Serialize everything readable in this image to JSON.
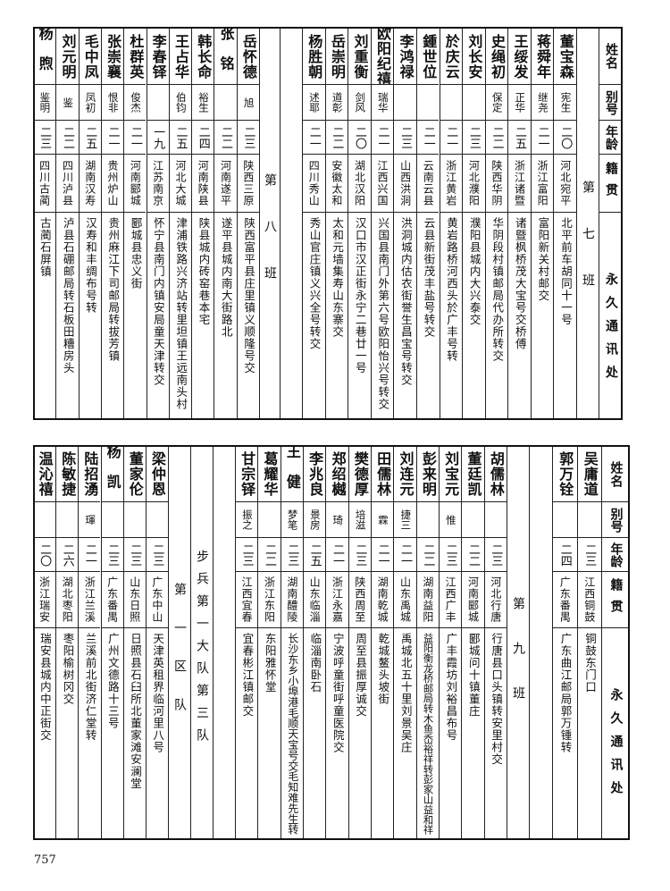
{
  "headers": {
    "name": "姓名",
    "alias": "别号",
    "age": "年龄",
    "native": "籍贯",
    "address": "永久通讯处"
  },
  "top": {
    "class7_label": "第七班",
    "class7": [
      {
        "name": "董宝森",
        "alias": "宪生",
        "age": "二〇",
        "native": "河北宛平",
        "address": "北平前车胡同十一号"
      },
      {
        "name": "蒋舜年",
        "alias": "继尧",
        "age": "二一",
        "native": "浙江富阳",
        "address": "富阳新关村邮交"
      },
      {
        "name": "王绥发",
        "alias": "正华",
        "age": "二五",
        "native": "浙江诸暨",
        "address": "诸暨枫桥茂大宝号交桥傅"
      },
      {
        "name": "史绳初",
        "alias": "保定",
        "age": "二二",
        "native": "陕西华阴",
        "address": "华阴段村镇邮局代办所转交"
      },
      {
        "name": "刘长安",
        "alias": "",
        "age": "二三",
        "native": "河北濮阳",
        "address": "濮阳县城内大兴泰交"
      },
      {
        "name": "於庆云",
        "alias": "",
        "age": "二一",
        "native": "浙江黄岩",
        "address": "黄岩路桥河西头於广丰号转"
      },
      {
        "name": "鍾世位",
        "alias": "",
        "age": "二一",
        "native": "云南云县",
        "address": "云县新街茂丰盐号转交"
      },
      {
        "name": "李鸿禄",
        "alias": "",
        "age": "二三",
        "native": "山西洪洞",
        "address": "洪洞城内估衣街誉生昌宝号转交"
      },
      {
        "name": "欧阳纪禧",
        "alias": "瑞华",
        "age": "二一",
        "native": "江西兴国",
        "address": "兴国县南门外第六号欧阳怡兴号转交"
      },
      {
        "name": "刘重衡",
        "alias": "剑风",
        "age": "二〇",
        "native": "湖北汉阳",
        "address": "汉口市汉正街永宁二巷廿一号"
      },
      {
        "name": "岳崇明",
        "alias": "道彰",
        "age": "二二",
        "native": "安徽太和",
        "address": "太和元墙集寿山东寨交"
      },
      {
        "name": "杨胜朝",
        "alias": "述耶",
        "age": "二一",
        "native": "四川秀山",
        "address": "秀山官庄镇义兴全号转交"
      }
    ],
    "class8_label": "第八班",
    "class8": [
      {
        "name": "岳怀德",
        "alias": "旭",
        "age": "二三",
        "native": "陕西三原",
        "address": "陕西富平县庄里镇义顺隆号交"
      },
      {
        "name": "张铭",
        "alias": "",
        "age": "二二",
        "native": "河南遂平",
        "address": "遂平县城内南大街路北"
      },
      {
        "name": "韩长命",
        "alias": "裕生",
        "age": "二四",
        "native": "河南陕县",
        "address": "陕县城内砖窑巷本宅"
      },
      {
        "name": "王占华",
        "alias": "伯钧",
        "age": "二五",
        "native": "河北大城",
        "address": "津浦铁路兴济站转里坦镇王远南头村"
      },
      {
        "name": "李春铎",
        "alias": "",
        "age": "一九",
        "native": "江苏南京",
        "address": "怀宁县南门内镇安局童天津转交"
      },
      {
        "name": "杜群英",
        "alias": "俊杰",
        "age": "二一",
        "native": "河南郾城",
        "address": "郾城县忠义街"
      },
      {
        "name": "张崇襄",
        "alias": "恨非",
        "age": "二一",
        "native": "贵州炉山",
        "address": "贵州麻江下司邮局转拔芳镇"
      },
      {
        "name": "毛中凤",
        "alias": "凤初",
        "age": "二五",
        "native": "湖南汉寿",
        "address": "汉寿和丰绸布号转"
      },
      {
        "name": "刘元明",
        "alias": "鉴",
        "age": "二二",
        "native": "四川泸县",
        "address": "泸县石硼邮局转石板田糟房头"
      },
      {
        "name": "杨煦",
        "alias": "鉴明",
        "age": "二三",
        "native": "四川古蔺",
        "address": "古蔺石屏镇"
      }
    ]
  },
  "bottom": {
    "class8_cont": [
      {
        "name": "吴庸道",
        "alias": "",
        "age": "二三",
        "native": "江西铜鼓",
        "address": "铜鼓东门口"
      },
      {
        "name": "郭万铨",
        "alias": "",
        "age": "二四",
        "native": "广东番禺",
        "address": "广东曲江邮局郭万锺转"
      }
    ],
    "class9_label": "第九班",
    "class9": [
      {
        "name": "胡儒林",
        "alias": "",
        "age": "二三",
        "native": "河北行唐",
        "address": "行唐县口头镇转安里村交"
      },
      {
        "name": "董廷凯",
        "alias": "",
        "age": "二二",
        "native": "河南郾城",
        "address": "郾城问十镇董庄"
      },
      {
        "name": "刘宝元",
        "alias": "惟",
        "age": "二三",
        "native": "江西广丰",
        "address": "广丰霞坊刘裕昌布号"
      },
      {
        "name": "彭来明",
        "alias": "",
        "age": "二二",
        "native": "湖南益阳",
        "address": "益阳衡龙桥邮局转木鱼岙裕祥转彭家山益和祥"
      },
      {
        "name": "刘连元",
        "alias": "捷三",
        "age": "二一",
        "native": "山东禹城",
        "address": "禹城北五十里刘景吴庄"
      },
      {
        "name": "田儒林",
        "alias": "霖",
        "age": "二一",
        "native": "湖南乾城",
        "address": "乾城鳌头坡街"
      },
      {
        "name": "樊德厚",
        "alias": "培滋",
        "age": "二三",
        "native": "陕西周至",
        "address": "周至县振厚诚交"
      },
      {
        "name": "郑绍樾",
        "alias": "琦",
        "age": "二一",
        "native": "浙江永嘉",
        "address": "宁波呼童街呼童医院交"
      },
      {
        "name": "李兆良",
        "alias": "景房",
        "age": "二五",
        "native": "山东临淄",
        "address": "临淄南卧石"
      },
      {
        "name": "王健",
        "alias": "梦笔",
        "age": "二三",
        "native": "湖南醴陵",
        "address": "长沙东乡小埠港毛顺天宝号交毛知难先生转"
      },
      {
        "name": "葛耀华",
        "alias": "",
        "age": "二二",
        "native": "浙江东阳",
        "address": "东阳雅怀堂"
      },
      {
        "name": "甘宗铎",
        "alias": "振之",
        "age": "二三",
        "native": "江西宜春",
        "address": "宜春彬江镇邮交"
      }
    ],
    "unit_label": "步兵第一大队第三队",
    "section_label": "第一区队",
    "section1": [
      {
        "name": "梁仲恩",
        "alias": "",
        "age": "二三",
        "native": "广东中山",
        "address": "天津英租界临河里八号"
      },
      {
        "name": "董家伦",
        "alias": "",
        "age": "二三",
        "native": "山东日照",
        "address": "日照县石臼所北董家滩安澜堂"
      },
      {
        "name": "杨凯",
        "alias": "",
        "age": "二三",
        "native": "广东番禺",
        "address": "广州文德路十三号"
      },
      {
        "name": "陆招湧",
        "alias": "琿",
        "age": "二一",
        "native": "浙江兰溪",
        "address": "兰溪前北街济仁堂转"
      },
      {
        "name": "陈敏捷",
        "alias": "",
        "age": "二六",
        "native": "湖北枣阳",
        "address": "枣阳榆树冈交"
      },
      {
        "name": "温沁禧",
        "alias": "",
        "age": "二〇",
        "native": "浙江瑞安",
        "address": "瑞安县城内中正街交"
      }
    ]
  },
  "page_number": "757"
}
